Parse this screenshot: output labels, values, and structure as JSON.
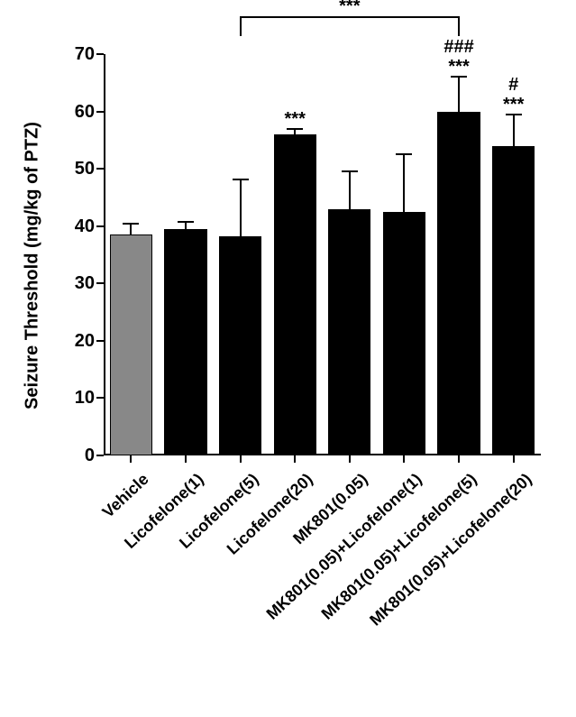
{
  "chart": {
    "type": "bar",
    "y_axis": {
      "title": "Seizure Threshold (mg/kg of PTZ)",
      "min": 0,
      "max": 70,
      "tick_step": 10,
      "ticks": [
        0,
        10,
        20,
        30,
        40,
        50,
        60,
        70
      ],
      "title_fontsize": 20,
      "tick_fontsize": 20
    },
    "categories": [
      "Vehicle",
      "Licofelone(1)",
      "Licofelone(5)",
      "Licofelone(20)",
      "MK801(0.05)",
      "MK801(0.05)+Licofelone(1)",
      "MK801(0.05)+Licofelone(5)",
      "MK801(0.05)+Licofelone(20)"
    ],
    "values": [
      38.5,
      39.5,
      38.2,
      56,
      43,
      42.5,
      60,
      54
    ],
    "errors": [
      2,
      1.3,
      10,
      1,
      6.5,
      10,
      6,
      5.5
    ],
    "bar_colors": [
      "#888888",
      "#000000",
      "#000000",
      "#000000",
      "#000000",
      "#000000",
      "#000000",
      "#000000"
    ],
    "bar_border_color": "#000000",
    "bar_width": 0.78,
    "background_color": "#ffffff",
    "axis_color": "#000000",
    "label_fontsize": 18,
    "label_rotation": -43,
    "annotations": {
      "bar_3": [
        "***"
      ],
      "bar_6": [
        "###",
        "***"
      ],
      "bar_7": [
        "#",
        "***"
      ]
    },
    "comparison_bracket": {
      "from_bar": 2,
      "to_bar": 6,
      "label": "***"
    }
  }
}
